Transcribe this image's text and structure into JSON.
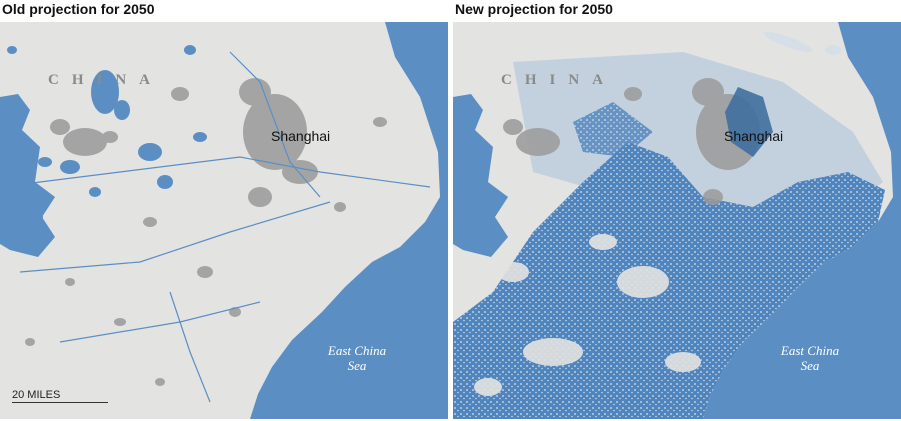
{
  "panels": {
    "old": {
      "title": "Old projection for 2050",
      "country_label": "CHINA",
      "city_label": "Shanghai",
      "sea_label_line1": "East China",
      "sea_label_line2": "Sea",
      "scale_label": "20 MILES"
    },
    "new": {
      "title": "New projection for 2050",
      "country_label": "CHINA",
      "city_label": "Shanghai",
      "sea_label_line1": "East China",
      "sea_label_line2": "Sea"
    }
  },
  "colors": {
    "sea": "#5b8fc4",
    "land": "#e3e3e1",
    "urban": "#9a9a9a",
    "flood": "#4f84bd",
    "flood_light": "#a9c3df"
  }
}
